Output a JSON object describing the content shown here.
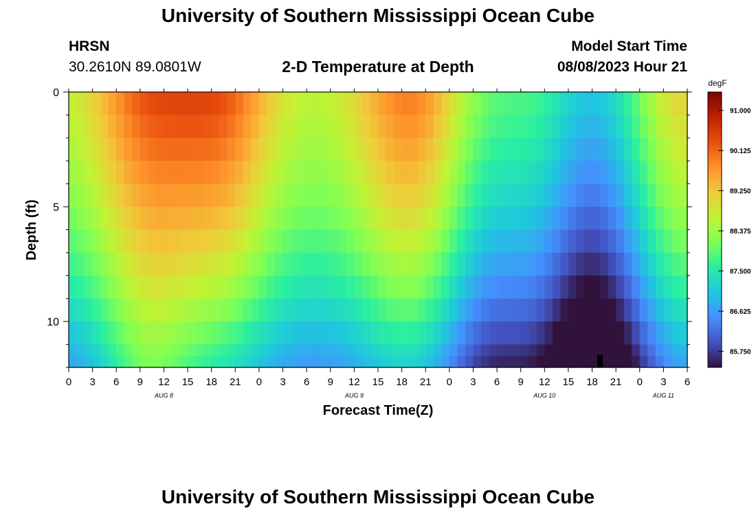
{
  "header": {
    "title": "University of Southern Mississippi Ocean Cube",
    "station_name": "HRSN",
    "station_coords": "30.2610N  89.0801W",
    "plot_title": "2-D Temperature at Depth",
    "model_start_label": "Model Start Time",
    "model_start_value": "08/08/2023 Hour 21"
  },
  "footer": {
    "title": "University of Southern Mississippi Ocean Cube"
  },
  "chart_data": {
    "type": "heatmap",
    "title": "2-D Temperature at Depth",
    "xlabel": "Forecast Time(Z)",
    "ylabel": "Depth (ft)",
    "x_range_hours_from_aug8_00z": [
      0,
      78
    ],
    "y_range_ft": [
      0,
      12
    ],
    "y_reversed": true,
    "x_tick_labels": [
      "0",
      "3",
      "6",
      "9",
      "12",
      "15",
      "18",
      "21",
      "0",
      "3",
      "6",
      "9",
      "12",
      "15",
      "18",
      "21",
      "0",
      "3",
      "6",
      "9",
      "12",
      "15",
      "18",
      "21",
      "0",
      "3",
      "6"
    ],
    "x_tick_hours": [
      0,
      3,
      6,
      9,
      12,
      15,
      18,
      21,
      24,
      27,
      30,
      33,
      36,
      39,
      42,
      45,
      48,
      51,
      54,
      57,
      60,
      63,
      66,
      69,
      72,
      75,
      78
    ],
    "y_tick_labels": [
      "0",
      "5",
      "10"
    ],
    "y_tick_values": [
      0,
      5,
      10
    ],
    "date_labels": [
      {
        "label": "AUG 8",
        "hour": 12
      },
      {
        "label": "AUG 9",
        "hour": 36
      },
      {
        "label": "AUG 10",
        "hour": 60
      },
      {
        "label": "AUG 11",
        "hour": 75
      }
    ],
    "colorbar": {
      "unit": "degF",
      "min": 85.4,
      "max": 91.4,
      "tick_labels": [
        "91.000",
        "90.125",
        "89.250",
        "88.375",
        "87.500",
        "86.625",
        "85.750"
      ],
      "tick_values": [
        91.0,
        90.125,
        89.25,
        88.375,
        87.5,
        86.625,
        85.75
      ]
    },
    "grid": false,
    "note": "Estimated temperature field (degF) by depth layer over forecast hours; warm daily surface maxima near Aug 8 ~10Z and Aug 9 ~19Z, coldest water around Aug 10 18-21Z at depth."
  }
}
